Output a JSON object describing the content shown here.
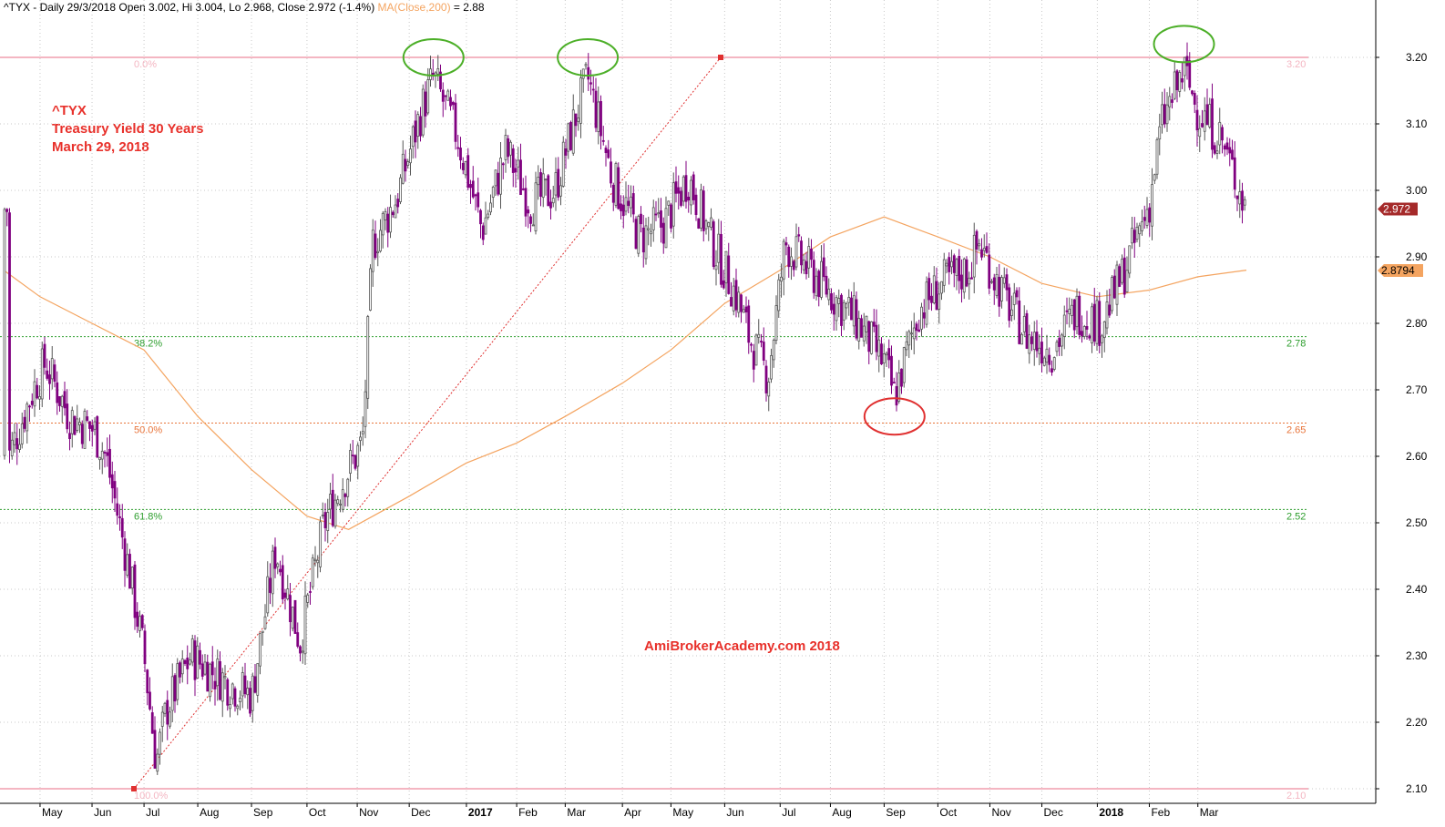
{
  "header": {
    "text": "^TYX - Daily 29/3/2018 Open 3.002, Hi 3.004, Lo 2.968, Close 2.972 (-1.4%)",
    "ma_label": "MA(Close,200)",
    "ma_value": " = 2.88"
  },
  "annotation": {
    "symbol": "^TYX",
    "name": "Treasury Yield 30 Years",
    "date": "March 29, 2018"
  },
  "watermark": "AmiBrokerAcademy.com  2018",
  "colors": {
    "bear_candle": "#800080",
    "bull_candle": "#555555",
    "ma": "#f4a460",
    "fib_0_100": "#f4b6c2",
    "fib_382_618": "#2e9e2e",
    "fib_50": "#e8743a",
    "trendline": "#e03030",
    "circle_top": "#4caf28",
    "circle_bottom": "#e03030",
    "price_badge": "#a52a2a",
    "ma_badge": "#f4a460"
  },
  "chart_data": {
    "type": "candlestick",
    "title": "^TYX - Treasury Yield 30 Years (Daily)",
    "ylim": [
      2.06,
      3.23
    ],
    "y_ticks": [
      "3.20",
      "3.10",
      "3.00",
      "2.90",
      "2.80",
      "2.70",
      "2.60",
      "2.50",
      "2.40",
      "2.30",
      "2.20",
      "2.10"
    ],
    "x_tick_labels": [
      "May",
      "Jun",
      "Jul",
      "Aug",
      "Sep",
      "Oct",
      "Nov",
      "Dec",
      "2017",
      "Feb",
      "Mar",
      "Apr",
      "May",
      "Jun",
      "Jul",
      "Aug",
      "Sep",
      "Oct",
      "Nov",
      "Dec",
      "2018",
      "Feb",
      "Mar"
    ],
    "last_close": "2.972",
    "ma_last": "2.8794",
    "fib_levels": [
      {
        "pct": "0.0%",
        "value": "3.20",
        "level": 3.2
      },
      {
        "pct": "38.2%",
        "value": "2.78",
        "level": 2.78
      },
      {
        "pct": "50.0%",
        "value": "2.65",
        "level": 2.65
      },
      {
        "pct": "61.8%",
        "value": "2.52",
        "level": 2.52
      },
      {
        "pct": "100.0%",
        "value": "2.10",
        "level": 2.1
      }
    ],
    "trendline": {
      "from": {
        "date": "Jul 2016",
        "value": 2.1
      },
      "to": {
        "date": "Jun 2017",
        "value": 3.2
      }
    },
    "price_path": [
      [
        "2016-04-14",
        2.6
      ],
      [
        "2016-04-28",
        2.7
      ],
      [
        "2016-05-05",
        2.74
      ],
      [
        "2016-05-19",
        2.66
      ],
      [
        "2016-06-02",
        2.64
      ],
      [
        "2016-06-09",
        2.6
      ],
      [
        "2016-06-23",
        2.42
      ],
      [
        "2016-07-01",
        2.3
      ],
      [
        "2016-07-08",
        2.14
      ],
      [
        "2016-07-14",
        2.22
      ],
      [
        "2016-07-28",
        2.3
      ],
      [
        "2016-08-18",
        2.26
      ],
      [
        "2016-09-01",
        2.24
      ],
      [
        "2016-09-15",
        2.46
      ],
      [
        "2016-09-29",
        2.32
      ],
      [
        "2016-10-13",
        2.5
      ],
      [
        "2016-10-27",
        2.58
      ],
      [
        "2016-11-04",
        2.62
      ],
      [
        "2016-11-10",
        2.92
      ],
      [
        "2016-11-24",
        2.99
      ],
      [
        "2016-12-08",
        3.12
      ],
      [
        "2016-12-15",
        3.17
      ],
      [
        "2016-12-29",
        3.08
      ],
      [
        "2017-01-12",
        2.94
      ],
      [
        "2017-01-26",
        3.06
      ],
      [
        "2017-02-09",
        2.98
      ],
      [
        "2017-02-23",
        3.0
      ],
      [
        "2017-03-08",
        3.12
      ],
      [
        "2017-03-14",
        3.17
      ],
      [
        "2017-03-28",
        3.02
      ],
      [
        "2017-04-13",
        2.93
      ],
      [
        "2017-04-27",
        2.95
      ],
      [
        "2017-05-11",
        3.02
      ],
      [
        "2017-05-25",
        2.92
      ],
      [
        "2017-06-08",
        2.84
      ],
      [
        "2017-06-15",
        2.78
      ],
      [
        "2017-06-26",
        2.72
      ],
      [
        "2017-07-06",
        2.92
      ],
      [
        "2017-07-20",
        2.88
      ],
      [
        "2017-08-03",
        2.84
      ],
      [
        "2017-08-17",
        2.8
      ],
      [
        "2017-09-01",
        2.74
      ],
      [
        "2017-09-07",
        2.69
      ],
      [
        "2017-09-21",
        2.82
      ],
      [
        "2017-10-05",
        2.86
      ],
      [
        "2017-10-19",
        2.88
      ],
      [
        "2017-10-26",
        2.92
      ],
      [
        "2017-11-09",
        2.84
      ],
      [
        "2017-11-23",
        2.78
      ],
      [
        "2017-12-07",
        2.76
      ],
      [
        "2017-12-21",
        2.82
      ],
      [
        "2018-01-04",
        2.8
      ],
      [
        "2018-01-18",
        2.88
      ],
      [
        "2018-02-01",
        2.98
      ],
      [
        "2018-02-08",
        3.1
      ],
      [
        "2018-02-21",
        3.18
      ],
      [
        "2018-03-01",
        3.12
      ],
      [
        "2018-03-14",
        3.08
      ],
      [
        "2018-03-29",
        2.972
      ]
    ],
    "ma200_path": [
      [
        "2016-04-11",
        2.88
      ],
      [
        "2016-05-02",
        2.84
      ],
      [
        "2016-06-01",
        2.8
      ],
      [
        "2016-07-01",
        2.76
      ],
      [
        "2016-08-01",
        2.66
      ],
      [
        "2016-09-01",
        2.58
      ],
      [
        "2016-10-03",
        2.51
      ],
      [
        "2016-10-27",
        2.49
      ],
      [
        "2016-12-01",
        2.54
      ],
      [
        "2017-01-03",
        2.59
      ],
      [
        "2017-02-01",
        2.62
      ],
      [
        "2017-03-01",
        2.66
      ],
      [
        "2017-04-03",
        2.71
      ],
      [
        "2017-05-01",
        2.76
      ],
      [
        "2017-06-01",
        2.83
      ],
      [
        "2017-07-03",
        2.88
      ],
      [
        "2017-08-01",
        2.93
      ],
      [
        "2017-09-01",
        2.96
      ],
      [
        "2017-10-02",
        2.93
      ],
      [
        "2017-11-01",
        2.9
      ],
      [
        "2017-12-01",
        2.86
      ],
      [
        "2018-01-02",
        2.84
      ],
      [
        "2018-02-01",
        2.85
      ],
      [
        "2018-03-01",
        2.87
      ],
      [
        "2018-03-29",
        2.88
      ]
    ],
    "marked_tops": [
      {
        "date": "2016-12-15",
        "value": 3.2
      },
      {
        "date": "2017-03-14",
        "value": 3.2
      },
      {
        "date": "2018-02-21",
        "value": 3.22
      }
    ],
    "marked_bottom": {
      "date": "2017-09-07",
      "value": 2.66
    }
  }
}
